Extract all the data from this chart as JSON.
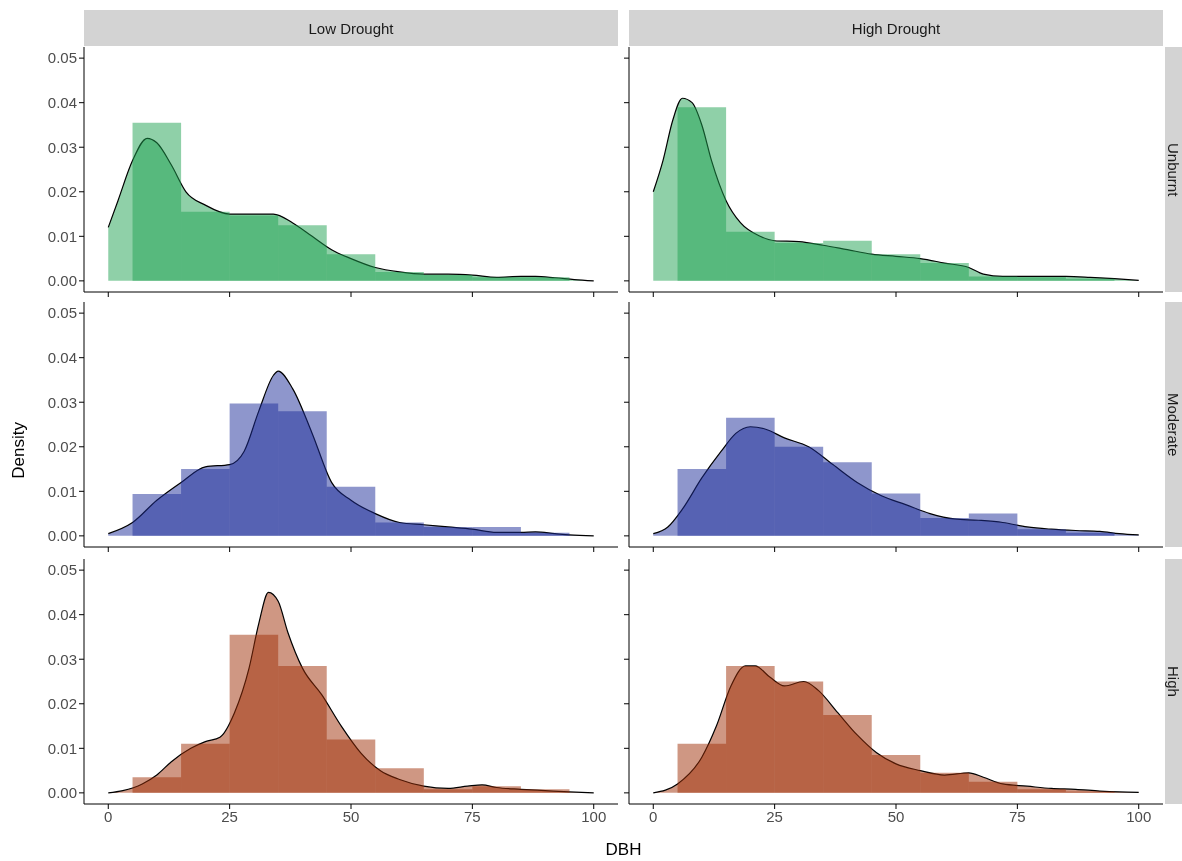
{
  "chart_data": [
    {
      "type": "histogram",
      "title": "Low Drought",
      "bins": [
        5,
        15,
        25,
        35,
        45,
        55,
        65,
        75,
        85,
        95
      ],
      "values": [
        0.0355,
        0.0155,
        0.0147,
        0.0125,
        0.006,
        0.002,
        0.0013,
        0.0008,
        0.0008
      ],
      "color": "#1fa151",
      "series": [
        {
          "type": "area",
          "color": "#1fa151",
          "x": [
            0,
            2,
            5,
            8,
            10,
            13,
            16,
            20,
            25,
            30,
            34,
            38,
            42,
            46,
            50,
            55,
            60,
            65,
            70,
            75,
            80,
            85,
            88,
            92,
            96,
            100
          ],
          "values": [
            0.012,
            0.018,
            0.027,
            0.032,
            0.031,
            0.026,
            0.02,
            0.017,
            0.015,
            0.015,
            0.015,
            0.013,
            0.01,
            0.007,
            0.005,
            0.003,
            0.002,
            0.0015,
            0.0015,
            0.0013,
            0.0008,
            0.001,
            0.001,
            0.0007,
            0.0003,
            0
          ]
        }
      ],
      "xlim": [
        -5,
        105
      ],
      "ylim": [
        -0.0025,
        0.0525
      ],
      "xticks": [
        0,
        25,
        50,
        75,
        100
      ],
      "yticks": [
        {
          "value": 0,
          "label": "0.00"
        },
        {
          "value": 0.01,
          "label": "0.01"
        },
        {
          "value": 0.02,
          "label": "0.02"
        },
        {
          "value": 0.03,
          "label": "0.03"
        },
        {
          "value": 0.04,
          "label": "0.04"
        },
        {
          "value": 0.05,
          "label": "0.05"
        }
      ],
      "tick_labels": "y"
    },
    {
      "type": "histogram",
      "title": "High Drought",
      "y2label": "Unburnt",
      "bins": [
        5,
        15,
        25,
        35,
        45,
        55,
        65,
        75,
        85,
        95
      ],
      "values": [
        0.039,
        0.011,
        0.0085,
        0.009,
        0.006,
        0.004,
        0.001,
        0.0008,
        0.0005
      ],
      "color": "#1fa151",
      "series": [
        {
          "type": "area",
          "color": "#1fa151",
          "x": [
            0,
            2,
            4,
            6,
            8,
            10,
            12,
            15,
            18,
            22,
            25,
            30,
            35,
            40,
            45,
            50,
            55,
            60,
            65,
            68,
            72,
            80,
            85,
            90,
            95,
            100
          ],
          "values": [
            0.02,
            0.027,
            0.036,
            0.041,
            0.04,
            0.035,
            0.027,
            0.018,
            0.013,
            0.01,
            0.009,
            0.0088,
            0.008,
            0.007,
            0.006,
            0.0055,
            0.005,
            0.004,
            0.003,
            0.0015,
            0.001,
            0.001,
            0.001,
            0.0008,
            0.0005,
            0.0001
          ]
        }
      ],
      "xlim": [
        -5,
        105
      ],
      "ylim": [
        -0.0025,
        0.0525
      ],
      "xticks": [
        0,
        25,
        50,
        75,
        100
      ],
      "yticks": [
        0,
        0.01,
        0.02,
        0.03,
        0.04,
        0.05
      ],
      "tick_labels": false
    },
    {
      "type": "histogram",
      "ylabel": "Density",
      "bins": [
        5,
        15,
        25,
        35,
        45,
        55,
        65,
        75,
        85,
        95
      ],
      "values": [
        0.0094,
        0.015,
        0.0297,
        0.028,
        0.011,
        0.003,
        0.002,
        0.002,
        0.0007
      ],
      "color": "#1d2d99",
      "series": [
        {
          "type": "area",
          "color": "#1d2d99",
          "x": [
            0,
            5,
            10,
            15,
            20,
            25,
            28,
            31,
            34,
            35,
            38,
            42,
            46,
            50,
            55,
            60,
            65,
            70,
            75,
            80,
            85,
            88,
            92,
            95,
            100
          ],
          "values": [
            0.0005,
            0.003,
            0.008,
            0.012,
            0.0155,
            0.016,
            0.019,
            0.028,
            0.036,
            0.037,
            0.033,
            0.023,
            0.012,
            0.008,
            0.005,
            0.003,
            0.0025,
            0.002,
            0.0015,
            0.0008,
            0.0008,
            0.0009,
            0.0005,
            0.0002,
            0
          ]
        }
      ],
      "xlim": [
        -5,
        105
      ],
      "ylim": [
        -0.0025,
        0.0525
      ],
      "xticks": [
        0,
        25,
        50,
        75,
        100
      ],
      "yticks": [
        {
          "value": 0,
          "label": "0.00"
        },
        {
          "value": 0.01,
          "label": "0.01"
        },
        {
          "value": 0.02,
          "label": "0.02"
        },
        {
          "value": 0.03,
          "label": "0.03"
        },
        {
          "value": 0.04,
          "label": "0.04"
        },
        {
          "value": 0.05,
          "label": "0.05"
        }
      ],
      "tick_labels": "y"
    },
    {
      "type": "histogram",
      "y2label": "Moderate",
      "bins": [
        5,
        15,
        25,
        35,
        45,
        55,
        65,
        75,
        85,
        95
      ],
      "values": [
        0.015,
        0.0265,
        0.02,
        0.0165,
        0.0095,
        0.004,
        0.005,
        0.0015,
        0.0007
      ],
      "color": "#1d2d99",
      "series": [
        {
          "type": "area",
          "color": "#1d2d99",
          "x": [
            0,
            3,
            6,
            10,
            14,
            17,
            20,
            23,
            27,
            32,
            37,
            42,
            47,
            52,
            57,
            62,
            67,
            72,
            77,
            82,
            87,
            92,
            96,
            100
          ],
          "values": [
            0.0005,
            0.002,
            0.006,
            0.013,
            0.019,
            0.023,
            0.0245,
            0.024,
            0.022,
            0.02,
            0.016,
            0.012,
            0.009,
            0.007,
            0.005,
            0.0038,
            0.0035,
            0.003,
            0.002,
            0.0015,
            0.0012,
            0.001,
            0.0005,
            0.0002
          ]
        }
      ],
      "xlim": [
        -5,
        105
      ],
      "ylim": [
        -0.0025,
        0.0525
      ],
      "xticks": [
        0,
        25,
        50,
        75,
        100
      ],
      "yticks": [
        0,
        0.01,
        0.02,
        0.03,
        0.04,
        0.05
      ],
      "tick_labels": false
    },
    {
      "type": "histogram",
      "xlabel": "DBH",
      "bins": [
        5,
        15,
        25,
        35,
        45,
        55,
        65,
        75,
        85,
        95
      ],
      "values": [
        0.0035,
        0.011,
        0.0355,
        0.0285,
        0.012,
        0.0055,
        0.0008,
        0.0015,
        0.0008
      ],
      "color": "#a03008",
      "series": [
        {
          "type": "area",
          "color": "#a03008",
          "x": [
            0,
            3,
            7,
            10,
            13,
            17,
            20,
            23,
            26,
            29,
            31,
            33,
            35,
            37,
            40,
            44,
            48,
            52,
            56,
            60,
            65,
            70,
            74,
            77,
            80,
            85,
            90,
            95,
            100
          ],
          "values": [
            0,
            0.0005,
            0.002,
            0.004,
            0.007,
            0.01,
            0.0115,
            0.0125,
            0.018,
            0.028,
            0.038,
            0.045,
            0.043,
            0.036,
            0.028,
            0.022,
            0.015,
            0.009,
            0.005,
            0.003,
            0.0015,
            0.001,
            0.0015,
            0.0018,
            0.0012,
            0.0008,
            0.0005,
            0.0002,
            0
          ]
        }
      ],
      "xlim": [
        -5,
        105
      ],
      "ylim": [
        -0.0025,
        0.0525
      ],
      "xticks": [
        0,
        25,
        50,
        75,
        100
      ],
      "yticks": [
        {
          "value": 0,
          "label": "0.00"
        },
        {
          "value": 0.01,
          "label": "0.01"
        },
        {
          "value": 0.02,
          "label": "0.02"
        },
        {
          "value": 0.03,
          "label": "0.03"
        },
        {
          "value": 0.04,
          "label": "0.04"
        },
        {
          "value": 0.05,
          "label": "0.05"
        }
      ]
    },
    {
      "type": "histogram",
      "y2label": "High",
      "bins": [
        5,
        15,
        25,
        35,
        45,
        55,
        65,
        75,
        85,
        95
      ],
      "values": [
        0.011,
        0.0285,
        0.025,
        0.0175,
        0.0085,
        0.0045,
        0.0025,
        0.0008,
        0.0003
      ],
      "color": "#a03008",
      "series": [
        {
          "type": "area",
          "color": "#a03008",
          "x": [
            0,
            5,
            10,
            13,
            16,
            19,
            21,
            24,
            27,
            31,
            34,
            38,
            42,
            46,
            50,
            55,
            60,
            65,
            68,
            72,
            77,
            82,
            87,
            92,
            96,
            100
          ],
          "values": [
            0,
            0.002,
            0.008,
            0.015,
            0.024,
            0.0285,
            0.0285,
            0.026,
            0.024,
            0.025,
            0.023,
            0.018,
            0.013,
            0.009,
            0.0065,
            0.005,
            0.004,
            0.0045,
            0.0035,
            0.002,
            0.0015,
            0.001,
            0.0008,
            0.0004,
            0.0002,
            0.0001
          ]
        }
      ],
      "xlim": [
        -5,
        105
      ],
      "ylim": [
        -0.0025,
        0.0525
      ],
      "xticks": [
        0,
        25,
        50,
        75,
        100
      ],
      "yticks": [
        0,
        0.01,
        0.02,
        0.03,
        0.04,
        0.05
      ],
      "tick_labels": "x"
    }
  ]
}
